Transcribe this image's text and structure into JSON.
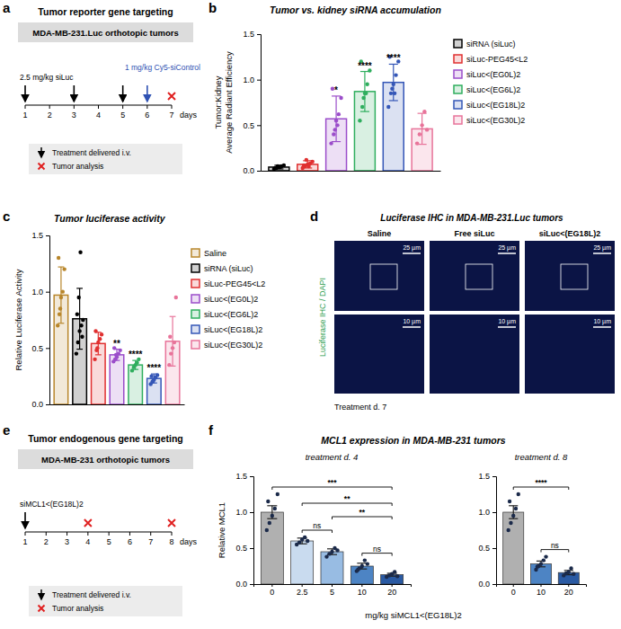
{
  "panel_labels": [
    "a",
    "b",
    "c",
    "d",
    "e",
    "f"
  ],
  "diagrams": {
    "a": {
      "title": "Tumor reporter gene targeting",
      "model": "MDA-MB-231.Luc orthotopic tumors",
      "days": [
        1,
        2,
        3,
        4,
        5,
        6,
        7
      ],
      "day_label": "days",
      "treatments": [
        {
          "label": "2.5 mg/kg siLuc",
          "days": [
            1,
            3,
            5
          ],
          "color": "#000000"
        },
        {
          "label": "1 mg/kg Cy5-siControl",
          "days": [
            6
          ],
          "color": "#2f52b3"
        }
      ],
      "analysis_days": [
        7
      ],
      "legend": {
        "treatment": "Treatment delivered i.v.",
        "analysis": "Tumor analysis"
      }
    },
    "e": {
      "title": "Tumor endogenous gene targeting",
      "model": "MDA-MB-231 orthotopic tumors",
      "days": [
        1,
        2,
        3,
        4,
        5,
        6,
        7,
        8
      ],
      "day_label": "days",
      "treatments": [
        {
          "label": "siMCL1<(EG18L)2",
          "days": [
            1
          ],
          "color": "#000000"
        }
      ],
      "analysis_days": [
        4,
        8
      ],
      "legend": {
        "treatment": "Treatment delivered i.v.",
        "analysis": "Tumor analysis"
      }
    }
  },
  "figure_d": {
    "title": "Luciferase IHC in MDA-MB-231.Luc tumors",
    "columns": [
      "Saline",
      "Free siLuc",
      "siLuc<(EG18L)2"
    ],
    "side_label": "Luciferase IHC / DAPI",
    "scale_bars": [
      "25 µm",
      "10 µm"
    ],
    "footer": "Treatment d. 7"
  },
  "panel_f": {
    "title": "MCL1 expression in MDA-MB-231 tumors",
    "xlabel": "mg/kg siMCL1<(EG18L)2"
  },
  "chart_data": [
    {
      "type": "bar",
      "title": "Tumor vs. kidney siRNA accumulation",
      "ylabel": [
        "Tumor:Kidney",
        "Average Radiant Efficiency"
      ],
      "categories": [
        "siRNA (siLuc)",
        "siLuc-PEG45<L2",
        "siLuc<(EG0L)2",
        "siLuc<(EG6L)2",
        "siLuc<(EG18L)2",
        "siLuc<(EG30L)2"
      ],
      "values": [
        0.04,
        0.07,
        0.57,
        0.87,
        0.97,
        0.46
      ],
      "errors": [
        0.02,
        0.04,
        0.25,
        0.22,
        0.2,
        0.17
      ],
      "points": [
        [
          0.02,
          0.03,
          0.04,
          0.05,
          0.06,
          0.03,
          0.05,
          0.04
        ],
        [
          0.03,
          0.05,
          0.07,
          0.08,
          0.1,
          0.06,
          0.12,
          0.05
        ],
        [
          0.3,
          0.4,
          0.55,
          0.62,
          0.8,
          0.9,
          0.45,
          0.5
        ],
        [
          0.55,
          0.7,
          0.85,
          0.95,
          1.1,
          1.2,
          0.8,
          0.85
        ],
        [
          0.7,
          0.85,
          0.95,
          1.05,
          1.2,
          1.25,
          0.9,
          0.85
        ],
        [
          0.3,
          0.4,
          0.5,
          0.65,
          0.45
        ]
      ],
      "colors": [
        "#000000",
        "#e03030",
        "#9b4dca",
        "#2fae5e",
        "#3557b7",
        "#e8749a"
      ],
      "significance": [
        null,
        null,
        "*",
        "****",
        "****",
        null
      ],
      "ylim": [
        0,
        1.5
      ],
      "yticks": [
        {
          "value": 0,
          "label": "0.0"
        },
        0.5,
        {
          "value": 1,
          "label": "1.0"
        },
        {
          "value": 1.5,
          "label": "1.5"
        }
      ],
      "tick_labels": "y",
      "legend": "right"
    },
    {
      "type": "bar",
      "title": "Tumor luciferase activity",
      "ylabel": "Relative Luciferase Activity",
      "categories": [
        "Saline",
        "siRNA (siLuc)",
        "siLuc-PEG45<L2",
        "siLuc<(EG0L)2",
        "siLuc<(EG6L)2",
        "siLuc<(EG18L)2",
        "siLuc<(EG30L)2"
      ],
      "values": [
        0.97,
        0.76,
        0.54,
        0.44,
        0.35,
        0.23,
        0.56
      ],
      "errors": [
        0.25,
        0.27,
        0.1,
        0.05,
        0.04,
        0.04,
        0.22
      ],
      "points": [
        [
          0.7,
          0.8,
          0.95,
          1.0,
          1.2,
          1.3,
          0.85
        ],
        [
          0.45,
          0.55,
          0.65,
          0.7,
          0.75,
          0.8,
          0.95,
          1.35,
          0.6
        ],
        [
          0.4,
          0.48,
          0.55,
          0.58,
          0.62,
          0.65,
          0.5
        ],
        [
          0.38,
          0.4,
          0.42,
          0.45,
          0.48,
          0.5,
          0.44
        ],
        [
          0.3,
          0.33,
          0.35,
          0.37,
          0.4
        ],
        [
          0.18,
          0.2,
          0.22,
          0.24,
          0.26,
          0.25,
          0.21
        ],
        [
          0.35,
          0.45,
          0.5,
          0.55,
          0.95,
          0.6
        ]
      ],
      "colors": [
        "#b8862b",
        "#000000",
        "#e03030",
        "#9b4dca",
        "#2fae5e",
        "#3557b7",
        "#e8749a"
      ],
      "significance": [
        null,
        null,
        null,
        "**",
        "****",
        "****",
        null
      ],
      "ylim": [
        0,
        1.5
      ],
      "yticks": [
        {
          "value": 0,
          "label": "0.0"
        },
        0.5,
        {
          "value": 1,
          "label": "1.0"
        },
        {
          "value": 1.5,
          "label": "1.5"
        }
      ],
      "tick_labels": "y",
      "legend": "right"
    },
    {
      "type": "bar",
      "title": "treatment d. 4",
      "ylabel": "Relative MCL1",
      "categories": [
        "0",
        "2.5",
        "5",
        "10",
        "20"
      ],
      "values": [
        1.0,
        0.6,
        0.45,
        0.25,
        0.13
      ],
      "errors": [
        0.09,
        0.04,
        0.04,
        0.04,
        0.02
      ],
      "points": [
        [
          0.75,
          0.85,
          0.95,
          1.05,
          1.25,
          1.15
        ],
        [
          0.55,
          0.58,
          0.62,
          0.65,
          0.6
        ],
        [
          0.38,
          0.42,
          0.45,
          0.5,
          0.47
        ],
        [
          0.18,
          0.22,
          0.25,
          0.33,
          0.28,
          0.2
        ],
        [
          0.1,
          0.12,
          0.14,
          0.17,
          0.11
        ]
      ],
      "colors": [
        "#b0b0b0",
        "#c9dbef",
        "#98bce3",
        "#4d84c4",
        "#2a5aa3"
      ],
      "brackets": [
        {
          "from": 0,
          "to": 4,
          "label": "***"
        },
        {
          "from": 1,
          "to": 4,
          "label": "**"
        },
        {
          "from": 1,
          "to": 2,
          "label": "ns"
        },
        {
          "from": 2,
          "to": 4,
          "label": "**"
        },
        {
          "from": 3,
          "to": 4,
          "label": "ns"
        }
      ],
      "ylim": [
        0,
        1.5
      ],
      "yticks": [
        {
          "value": 0,
          "label": "0.0"
        },
        0.5,
        {
          "value": 1,
          "label": "1.0"
        },
        {
          "value": 1.5,
          "label": "1.5"
        }
      ]
    },
    {
      "type": "bar",
      "title": "treatment d. 8",
      "categories": [
        "0",
        "10",
        "20"
      ],
      "values": [
        1.0,
        0.28,
        0.16
      ],
      "errors": [
        0.09,
        0.04,
        0.03
      ],
      "points": [
        [
          0.75,
          0.85,
          0.95,
          1.05,
          1.25,
          1.15
        ],
        [
          0.2,
          0.25,
          0.28,
          0.33,
          0.38,
          0.24
        ],
        [
          0.12,
          0.15,
          0.17,
          0.22,
          0.14
        ]
      ],
      "colors": [
        "#b0b0b0",
        "#4d84c4",
        "#2a5aa3"
      ],
      "brackets": [
        {
          "from": 0,
          "to": 2,
          "label": "****"
        },
        {
          "from": 1,
          "to": 2,
          "label": "ns"
        }
      ],
      "ylim": [
        0,
        1.5
      ],
      "yticks": [
        {
          "value": 0,
          "label": "0.0"
        },
        0.5,
        {
          "value": 1,
          "label": "1.0"
        },
        {
          "value": 1.5,
          "label": "1.5"
        }
      ]
    }
  ]
}
